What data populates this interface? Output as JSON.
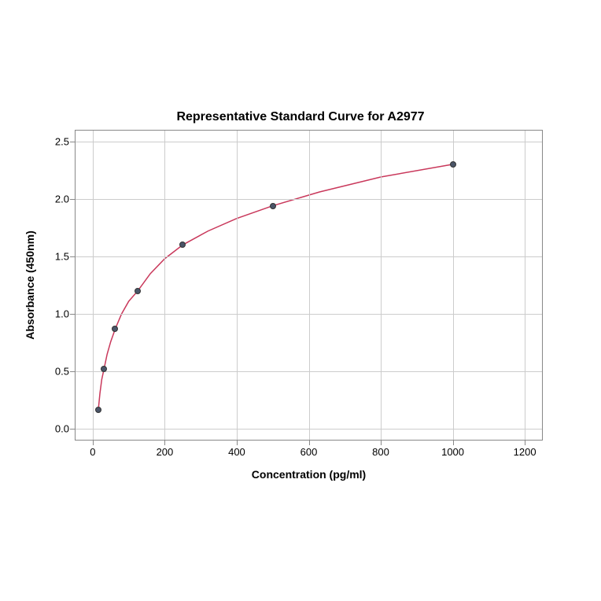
{
  "chart": {
    "type": "scatter-line",
    "title": "Representative Standard Curve for A2977",
    "title_fontsize": 16,
    "xlabel": "Concentration (pg/ml)",
    "ylabel": "Absorbance (450nm)",
    "label_fontsize": 14,
    "tick_fontsize": 13,
    "xlim": [
      -50,
      1250
    ],
    "ylim": [
      -0.1,
      2.6
    ],
    "xticks": [
      0,
      200,
      400,
      600,
      800,
      1000,
      1200
    ],
    "yticks": [
      0.0,
      0.5,
      1.0,
      1.5,
      2.0,
      2.5
    ],
    "ytick_labels": [
      "0.0",
      "0.5",
      "1.0",
      "1.5",
      "2.0",
      "2.5"
    ],
    "grid_color": "#cccccc",
    "border_color": "#888888",
    "background_color": "#ffffff",
    "data_points": [
      {
        "x": 15.6,
        "y": 0.17
      },
      {
        "x": 31.2,
        "y": 0.52
      },
      {
        "x": 62.5,
        "y": 0.87
      },
      {
        "x": 125,
        "y": 1.2
      },
      {
        "x": 250,
        "y": 1.6
      },
      {
        "x": 500,
        "y": 1.94
      },
      {
        "x": 1000,
        "y": 2.3
      }
    ],
    "marker_color": "#4a5568",
    "marker_size": 8,
    "line_color": "#c9385b",
    "line_width": 1.5,
    "curve_points": [
      {
        "x": 15.6,
        "y": 0.17
      },
      {
        "x": 20,
        "y": 0.31
      },
      {
        "x": 25,
        "y": 0.43
      },
      {
        "x": 31.2,
        "y": 0.52
      },
      {
        "x": 40,
        "y": 0.65
      },
      {
        "x": 50,
        "y": 0.76
      },
      {
        "x": 62.5,
        "y": 0.87
      },
      {
        "x": 80,
        "y": 1.0
      },
      {
        "x": 100,
        "y": 1.11
      },
      {
        "x": 125,
        "y": 1.2
      },
      {
        "x": 160,
        "y": 1.35
      },
      {
        "x": 200,
        "y": 1.48
      },
      {
        "x": 250,
        "y": 1.6
      },
      {
        "x": 320,
        "y": 1.72
      },
      {
        "x": 400,
        "y": 1.83
      },
      {
        "x": 500,
        "y": 1.94
      },
      {
        "x": 630,
        "y": 2.06
      },
      {
        "x": 800,
        "y": 2.19
      },
      {
        "x": 1000,
        "y": 2.3
      }
    ]
  }
}
